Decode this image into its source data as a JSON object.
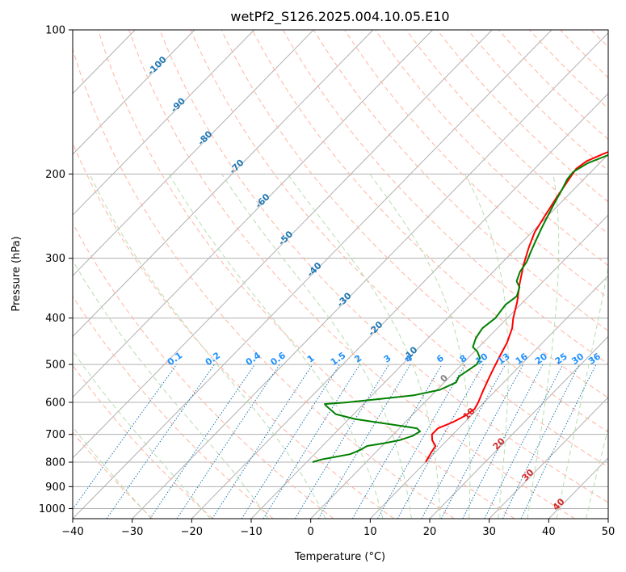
{
  "chart_data": {
    "type": "line",
    "title": "wetPf2_S126.2025.004.10.05.E10",
    "xlabel": "Temperature (°C)",
    "ylabel": "Pressure (hPa)",
    "xlim": [
      -40,
      50
    ],
    "ylim": [
      1050,
      100
    ],
    "y_scale": "log",
    "grid": true,
    "x_ticks": [
      "−40",
      "−30",
      "−20",
      "−10",
      "0",
      "10",
      "20",
      "30",
      "40",
      "50"
    ],
    "y_ticks": [
      "100",
      "200",
      "300",
      "400",
      "500",
      "600",
      "700",
      "800",
      "900",
      "1000"
    ],
    "series": [
      {
        "color": "#ff0000",
        "points": [
          [
            10.0,
            800
          ],
          [
            9.3,
            760
          ],
          [
            9.0,
            740
          ],
          [
            7.5,
            720
          ],
          [
            6.5,
            700
          ],
          [
            6.5,
            680
          ],
          [
            8.0,
            660
          ],
          [
            9.0,
            640
          ],
          [
            9.5,
            620
          ],
          [
            9.0,
            600
          ],
          [
            8.0,
            570
          ],
          [
            7.0,
            540
          ],
          [
            6.0,
            510
          ],
          [
            5.0,
            480
          ],
          [
            4.0,
            450
          ],
          [
            2.5,
            420
          ],
          [
            1.0,
            400
          ],
          [
            -1.0,
            370
          ],
          [
            -3.5,
            340
          ],
          [
            -6.0,
            310
          ],
          [
            -8.0,
            285
          ],
          [
            -9.5,
            265
          ],
          [
            -10.5,
            245
          ],
          [
            -11.5,
            225
          ],
          [
            -12.5,
            205
          ],
          [
            -13.0,
            195
          ],
          [
            -12.5,
            188
          ],
          [
            -11.0,
            182
          ],
          [
            -9.0,
            175
          ],
          [
            -5.0,
            168
          ],
          [
            0.0,
            160
          ],
          [
            5.0,
            150
          ],
          [
            9.0,
            140
          ],
          [
            12.0,
            130
          ],
          [
            14.0,
            120
          ],
          [
            16.0,
            110
          ],
          [
            18.0,
            100
          ]
        ]
      },
      {
        "color": "#008000",
        "points": [
          [
            -9.0,
            800
          ],
          [
            -8.0,
            790
          ],
          [
            -6.0,
            780
          ],
          [
            -4.0,
            770
          ],
          [
            -3.0,
            755
          ],
          [
            -2.5,
            740
          ],
          [
            0.0,
            730
          ],
          [
            2.0,
            720
          ],
          [
            3.5,
            705
          ],
          [
            4.0,
            690
          ],
          [
            3.0,
            680
          ],
          [
            0.0,
            672
          ],
          [
            -5.0,
            660
          ],
          [
            -9.0,
            650
          ],
          [
            -13.0,
            635
          ],
          [
            -16.0,
            610
          ],
          [
            -16.5,
            605
          ],
          [
            -13.0,
            600
          ],
          [
            -8.0,
            590
          ],
          [
            -3.0,
            580
          ],
          [
            0.5,
            565
          ],
          [
            2.0,
            545
          ],
          [
            1.5,
            530
          ],
          [
            2.0,
            515
          ],
          [
            2.5,
            500
          ],
          [
            2.0,
            485
          ],
          [
            0.5,
            470
          ],
          [
            -1.0,
            460
          ],
          [
            -2.0,
            440
          ],
          [
            -2.5,
            420
          ],
          [
            -2.0,
            400
          ],
          [
            -2.5,
            375
          ],
          [
            -2.0,
            360
          ],
          [
            -3.0,
            345
          ],
          [
            -4.5,
            335
          ],
          [
            -5.5,
            320
          ],
          [
            -6.0,
            305
          ],
          [
            -7.0,
            290
          ],
          [
            -8.0,
            275
          ],
          [
            -9.0,
            260
          ],
          [
            -10.0,
            245
          ],
          [
            -11.0,
            230
          ],
          [
            -12.0,
            215
          ],
          [
            -12.8,
            205
          ],
          [
            -13.0,
            198
          ],
          [
            -12.0,
            190
          ],
          [
            -10.0,
            183
          ],
          [
            -8.5,
            176
          ],
          [
            -8.0,
            170
          ],
          [
            -8.0,
            162
          ],
          [
            -8.5,
            155
          ],
          [
            -9.0,
            148
          ],
          [
            -9.0,
            140
          ],
          [
            -8.5,
            130
          ],
          [
            -8.0,
            122
          ],
          [
            -7.0,
            115
          ],
          [
            -5.5,
            108
          ],
          [
            -4.0,
            100
          ]
        ]
      }
    ]
  },
  "overlays": {
    "dry_adiabat_labels": [
      "-100",
      "-90",
      "-80",
      "-70",
      "-60",
      "-50",
      "-40",
      "-30",
      "-20",
      "-10"
    ],
    "mixing_ratio_labels": [
      "0.1",
      "0.2",
      "0.4",
      "0.6",
      "1",
      "1.5",
      "2",
      "3",
      "4",
      "6",
      "8",
      "10",
      "13",
      "16",
      "20",
      "25",
      "30",
      "36"
    ],
    "moist_adiabat_labels": [
      "0",
      "10",
      "20",
      "30",
      "40"
    ],
    "colors": {
      "grid": "#b0b0b0",
      "isotherm": "#b0b0b0",
      "dry_adiabat": "#ffb4a0",
      "moist_adiabat": "#b8dcb0",
      "mixing_ratio": "#1f77b4",
      "dry_label": "#1f77b4",
      "mixing_label": "#1e90ff",
      "moist_label_zero": "#808080",
      "moist_label": "#d62728"
    }
  }
}
